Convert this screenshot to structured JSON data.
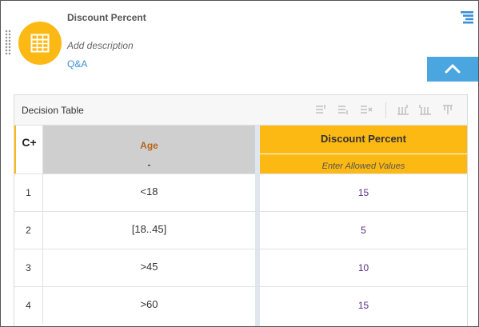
{
  "header": {
    "title": "Discount Percent",
    "description_placeholder": "Add description",
    "qa_link": "Q&A"
  },
  "icons": {
    "decision": "decision-table-icon",
    "menu": "list-menu-icon",
    "collapse": "chevron-up-icon"
  },
  "colors": {
    "accent": "#fdb913",
    "collapse_button": "#4ba6e0",
    "input_header": "#cfcfcf",
    "input_label": "#b5651d",
    "output_value": "#5a2d82",
    "link": "#3d8fd6"
  },
  "table": {
    "toolbar_title": "Decision Table",
    "hit_policy": "C+",
    "input_column": {
      "label": "Age",
      "allowed_values": "-"
    },
    "output_column": {
      "label": "Discount Percent",
      "allowed_values_placeholder": "Enter Allowed Values"
    },
    "rows": [
      {
        "number": "1",
        "input": "<18",
        "output": "15"
      },
      {
        "number": "2",
        "input": "[18..45]",
        "output": "5"
      },
      {
        "number": "3",
        "input": ">45",
        "output": "10"
      },
      {
        "number": "4",
        "input": ">60",
        "output": "15"
      }
    ]
  }
}
